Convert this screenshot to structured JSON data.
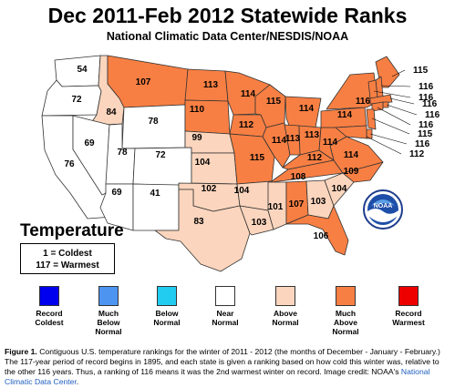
{
  "title": "Dec 2011-Feb 2012 Statewide Ranks",
  "subtitle": "National Climatic Data Center/NESDIS/NOAA",
  "parameter": "Temperature",
  "key": {
    "coldest": "1 = Coldest",
    "warmest": "117 = Warmest"
  },
  "logo_text": "NOAA",
  "colors": {
    "record_coldest": "#0000ee",
    "much_below": "#4d94f0",
    "below": "#22ccf0",
    "near": "#ffffff",
    "above": "#fbd5bd",
    "much_above": "#f87f43",
    "record_warmest": "#ee0000"
  },
  "legend": [
    {
      "line1": "Record",
      "line2": "Coldest",
      "color": "#0000ee"
    },
    {
      "line1": "Much",
      "line2": "Below",
      "line3": "Normal",
      "color": "#4d94f0"
    },
    {
      "line1": "Below",
      "line2": "Normal",
      "color": "#22ccf0"
    },
    {
      "line1": "Near",
      "line2": "Normal",
      "color": "#ffffff"
    },
    {
      "line1": "Above",
      "line2": "Normal",
      "color": "#fbd5bd"
    },
    {
      "line1": "Much",
      "line2": "Above",
      "line3": "Normal",
      "color": "#f87f43"
    },
    {
      "line1": "Record",
      "line2": "Warmest",
      "color": "#ee0000"
    }
  ],
  "states": [
    {
      "state": "WA",
      "rank": "54",
      "category": "near"
    },
    {
      "state": "OR",
      "rank": "72",
      "category": "near"
    },
    {
      "state": "ID",
      "rank": "84",
      "category": "above"
    },
    {
      "state": "MT",
      "rank": "107",
      "category": "much_above"
    },
    {
      "state": "WY",
      "rank": "78",
      "category": "near"
    },
    {
      "state": "CA",
      "rank": "76",
      "category": "near"
    },
    {
      "state": "NV",
      "rank": "69",
      "category": "near"
    },
    {
      "state": "UT",
      "rank": "78",
      "category": "near"
    },
    {
      "state": "CO",
      "rank": "72",
      "category": "near"
    },
    {
      "state": "AZ",
      "rank": "69",
      "category": "near"
    },
    {
      "state": "NM",
      "rank": "41",
      "category": "near"
    },
    {
      "state": "ND",
      "rank": "113",
      "category": "much_above"
    },
    {
      "state": "SD",
      "rank": "110",
      "category": "much_above"
    },
    {
      "state": "NE",
      "rank": "99",
      "category": "above"
    },
    {
      "state": "KS",
      "rank": "104",
      "category": "above"
    },
    {
      "state": "OK",
      "rank": "102",
      "category": "above"
    },
    {
      "state": "TX",
      "rank": "83",
      "category": "above"
    },
    {
      "state": "MN",
      "rank": "114",
      "category": "much_above"
    },
    {
      "state": "IA",
      "rank": "112",
      "category": "much_above"
    },
    {
      "state": "MO",
      "rank": "115",
      "category": "much_above"
    },
    {
      "state": "AR",
      "rank": "104",
      "category": "above"
    },
    {
      "state": "LA",
      "rank": "103",
      "category": "above"
    },
    {
      "state": "WI",
      "rank": "115",
      "category": "much_above"
    },
    {
      "state": "IL",
      "rank": "114",
      "category": "much_above"
    },
    {
      "state": "MI",
      "rank": "114",
      "category": "much_above"
    },
    {
      "state": "IN",
      "rank": "113",
      "category": "much_above"
    },
    {
      "state": "OH",
      "rank": "113",
      "category": "much_above"
    },
    {
      "state": "KY",
      "rank": "112",
      "category": "much_above"
    },
    {
      "state": "TN",
      "rank": "108",
      "category": "much_above"
    },
    {
      "state": "MS",
      "rank": "101",
      "category": "above"
    },
    {
      "state": "AL",
      "rank": "107",
      "category": "much_above"
    },
    {
      "state": "GA",
      "rank": "103",
      "category": "above"
    },
    {
      "state": "FL",
      "rank": "106",
      "category": "much_above"
    },
    {
      "state": "SC",
      "rank": "104",
      "category": "above"
    },
    {
      "state": "NC",
      "rank": "109",
      "category": "much_above"
    },
    {
      "state": "VA",
      "rank": "114",
      "category": "much_above"
    },
    {
      "state": "WV",
      "rank": "114",
      "category": "much_above"
    },
    {
      "state": "PA",
      "rank": "114",
      "category": "much_above"
    },
    {
      "state": "NY",
      "rank": "116",
      "category": "much_above"
    },
    {
      "state": "ME",
      "rank": "115",
      "category": "much_above"
    },
    {
      "state": "NH",
      "rank": "116",
      "category": "much_above"
    },
    {
      "state": "VT",
      "rank": "116",
      "category": "much_above"
    },
    {
      "state": "MA",
      "rank": "116",
      "category": "much_above"
    },
    {
      "state": "RI",
      "rank": "116",
      "category": "much_above"
    },
    {
      "state": "CT",
      "rank": "116",
      "category": "much_above"
    },
    {
      "state": "NJ",
      "rank": "115",
      "category": "much_above"
    },
    {
      "state": "DE",
      "rank": "116",
      "category": "much_above"
    },
    {
      "state": "MD",
      "rank": "112",
      "category": "much_above"
    }
  ],
  "caption": {
    "fig": "Figure 1.",
    "text": " Contiguous U.S. temperature rankings for the winter of 2011 - 2012 (the months of December - January - February.) The 117-year period of record begins in 1895, and each state is given a ranking based on how cold this winter was, relative to the other 116 years. Thus, a ranking of 116 means it was the 2nd warmest winter on record. Image credit: NOAA's ",
    "link": "National Climatic Data Center",
    "end": "."
  }
}
